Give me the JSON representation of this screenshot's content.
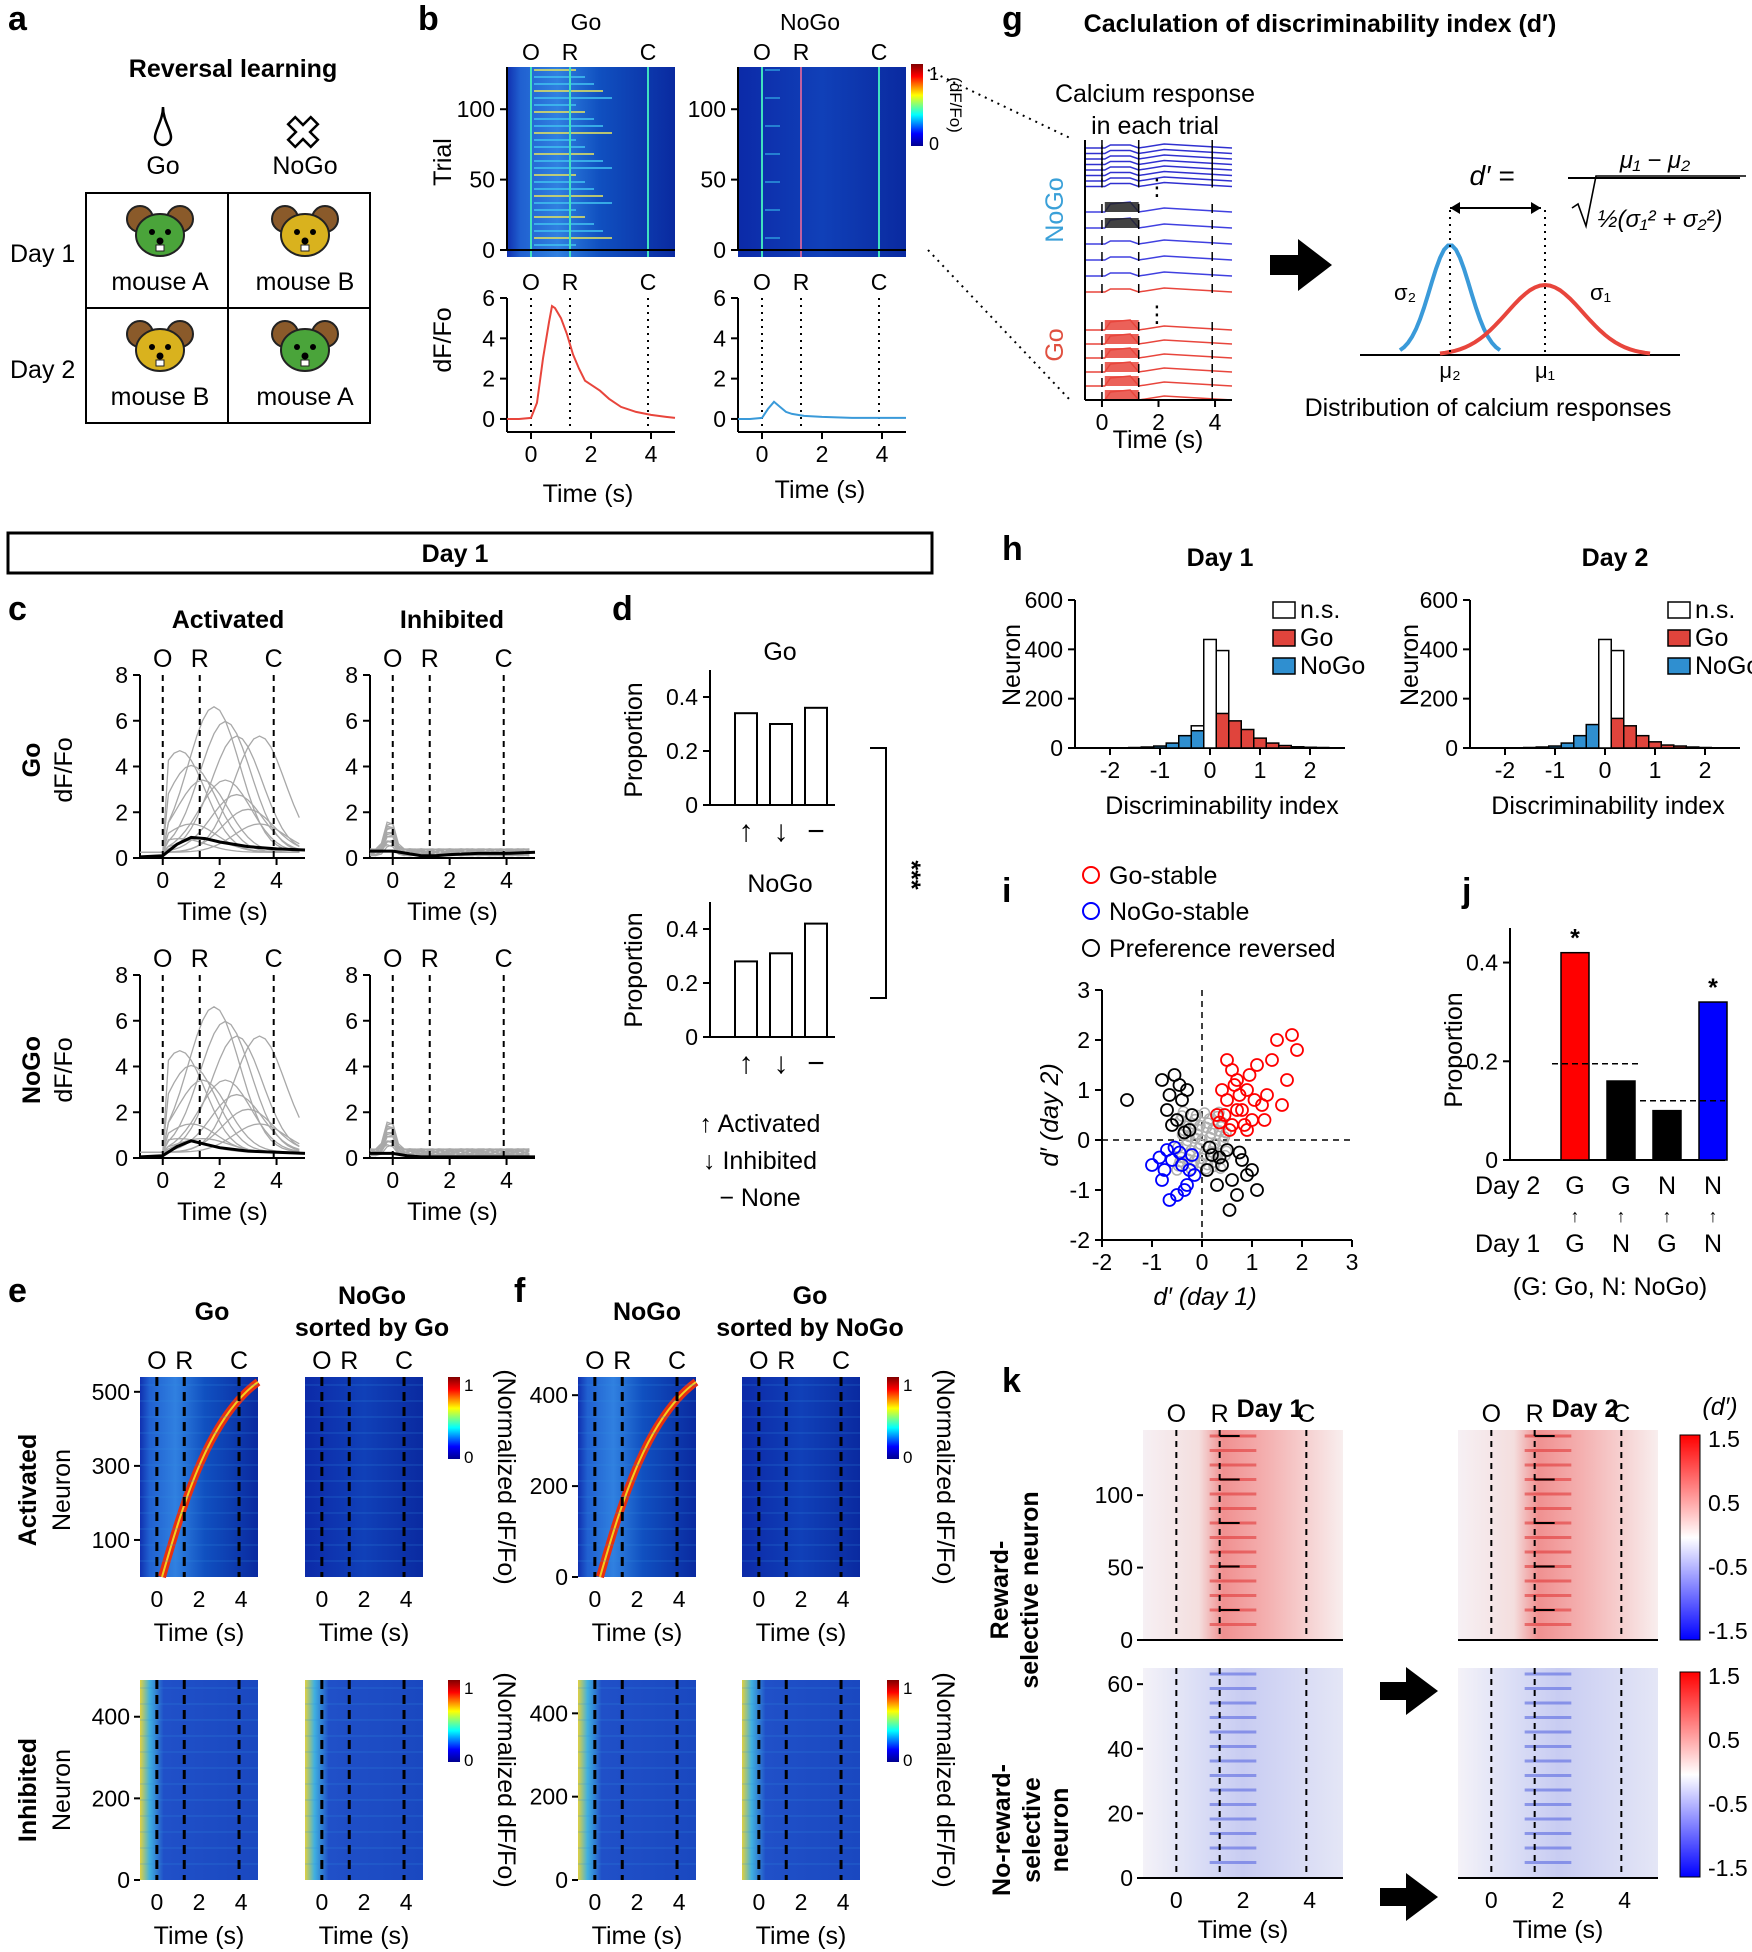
{
  "panels": {
    "a": "a",
    "b": "b",
    "c": "c",
    "d": "d",
    "e": "e",
    "f": "f",
    "g": "g",
    "h": "h",
    "i": "i",
    "j": "j",
    "k": "k"
  },
  "colors": {
    "go": "#e8453c",
    "nogo": "#3a9ad9",
    "hist_go": "#e0443c",
    "hist_nogo": "#2f8fd0",
    "scatter_go": "#ff0000",
    "scatter_nogo": "#0000ff",
    "j_go": "#ff0000",
    "j_nogo": "#0000ff",
    "mouse_green": "#4aa43a",
    "mouse_gold": "#d9b21e"
  },
  "event_labels": [
    "O",
    "R",
    "C"
  ],
  "a": {
    "title": "Reversal learning",
    "go": "Go",
    "nogo": "NoGo",
    "day1": "Day 1",
    "day2": "Day 2",
    "cells": [
      "mouse A",
      "mouse B",
      "mouse B",
      "mouse A"
    ],
    "mouse_icons": [
      "mouse-icon-green",
      "mouse-icon-gold",
      "mouse-icon-gold",
      "mouse-icon-green"
    ]
  },
  "b": {
    "go_title": "Go",
    "nogo_title": "NoGo",
    "cb_max": "1",
    "cb_min": "0",
    "cb_label": "(dF/Fo)",
    "trial_ylabel": "Trial",
    "dffo_ylabel": "dF/Fo",
    "xlabel": "Time (s)",
    "trial_ticks": [
      0,
      50,
      100
    ],
    "dffo_ticks": [
      0,
      2,
      4,
      6
    ],
    "time_ticks": [
      0,
      2,
      4
    ]
  },
  "g": {
    "title": "Caclulation of discriminability index (d′)",
    "calcium_line1": "Calcium response",
    "calcium_line2": "in each trial",
    "nogo": "NoGo",
    "go": "Go",
    "xlabel": "Time (s)",
    "time_ticks": [
      0,
      2,
      4
    ],
    "formula_lhs": "d′ =",
    "formula_num": "μ₁ − μ₂",
    "formula_den": "½(σ₁² +  σ₂²)",
    "sigma1": "σ₁",
    "sigma2": "σ₂",
    "mu1": "μ₁",
    "mu2": "μ₂",
    "dist_label": "Distribution of calcium responses"
  },
  "banner": "Day 1",
  "c": {
    "activated": "Activated",
    "inhibited": "Inhibited",
    "go_row": "Go",
    "nogo_row": "NoGo",
    "ylabel": "dF/Fo",
    "xlabel": "Time (s)",
    "y_ticks": [
      0,
      2,
      4,
      6,
      8
    ],
    "x_ticks": [
      0,
      2,
      4
    ]
  },
  "d": {
    "go_title": "Go",
    "nogo_title": "NoGo",
    "ylabel": "Proportion",
    "y_ticks": [
      0,
      0.2,
      0.4
    ],
    "x_symbols": [
      "↑",
      "↓",
      "−"
    ],
    "significance": "***",
    "legend": [
      "↑  Activated",
      "↓  Inhibited",
      "−    None"
    ]
  },
  "e": {
    "col1": "Go",
    "col2a": "NoGo",
    "col2b": "sorted by Go",
    "activated": "Activated",
    "inhibited": "Inhibited",
    "ylabel": "Neuron",
    "xlabel": "Time (s)",
    "act_ticks": [
      100,
      300,
      500
    ],
    "inh_ticks": [
      0,
      200,
      400
    ],
    "x_ticks": [
      0,
      2,
      4
    ]
  },
  "f": {
    "col1": "NoGo",
    "col2a": "Go",
    "col2b": "sorted by NoGo",
    "act_ticks": [
      0,
      200,
      400
    ],
    "inh_ticks": [
      0,
      200,
      400
    ],
    "x_ticks": [
      0,
      2,
      4
    ]
  },
  "ef_colorbar": {
    "max": "1",
    "min": "0",
    "label": "(Normalized dF/Fo)"
  },
  "h": {
    "day1": "Day 1",
    "day2": "Day 2",
    "ylabel": "Neuron",
    "xlabel": "Discriminability index",
    "legend": [
      "n.s.",
      "Go",
      "NoGo"
    ],
    "y_ticks": [
      0,
      200,
      400,
      600
    ],
    "x_ticks": [
      -2,
      -1,
      0,
      1,
      2
    ]
  },
  "i": {
    "legend": [
      "Go-stable",
      "NoGo-stable",
      "Preference reversed"
    ],
    "xlabel": "d′ (day 1)",
    "ylabel": "d′ (day 2)",
    "x_ticks": [
      -2,
      -1,
      0,
      1,
      2,
      3
    ],
    "y_ticks": [
      -2,
      -1,
      0,
      1,
      2,
      3
    ]
  },
  "j": {
    "ylabel": "Proportion",
    "day2": "Day 2",
    "day1": "Day 1",
    "note": "(G: Go, N: NoGo)",
    "y_ticks": [
      0,
      0.2,
      0.4
    ],
    "arrow": "↑"
  },
  "k": {
    "day1": "Day 1",
    "day2": "Day 2",
    "unit": "(d′)",
    "row1a": "Reward-",
    "row1b": "selective neuron",
    "row2a": "No-reward-",
    "row2b": "selective",
    "row2c": "neuron",
    "xlabel": "Time (s)",
    "row1_ticks": [
      0,
      50,
      100
    ],
    "row2_ticks": [
      0,
      20,
      40,
      60
    ],
    "x_ticks": [
      0,
      2,
      4
    ],
    "cb_ticks": [
      "1.5",
      "0.5",
      "-0.5",
      "-1.5"
    ]
  },
  "chart_data": [
    {
      "id": "b-go-mean",
      "type": "line",
      "title": "Go",
      "xlabel": "Time (s)",
      "ylabel": "dF/Fo",
      "xlim": [
        -0.8,
        4.8
      ],
      "ylim": [
        -0.3,
        6
      ],
      "x": [
        -0.8,
        -0.4,
        0,
        0.2,
        0.4,
        0.6,
        0.7,
        0.8,
        1.0,
        1.2,
        1.4,
        1.6,
        1.8,
        2.0,
        2.3,
        2.6,
        3.0,
        3.5,
        4.0,
        4.5,
        4.8
      ],
      "y": [
        0.0,
        0.0,
        0.05,
        0.8,
        3.0,
        4.8,
        5.6,
        5.5,
        5.0,
        4.2,
        3.2,
        2.5,
        1.9,
        1.7,
        1.4,
        1.0,
        0.6,
        0.35,
        0.2,
        0.1,
        0.05
      ]
    },
    {
      "id": "b-nogo-mean",
      "type": "line",
      "title": "NoGo",
      "xlabel": "Time (s)",
      "ylabel": "dF/Fo",
      "xlim": [
        -0.8,
        4.8
      ],
      "ylim": [
        -0.3,
        6
      ],
      "x": [
        -0.8,
        -0.4,
        0,
        0.2,
        0.4,
        0.6,
        0.8,
        1.0,
        1.4,
        2.0,
        3.0,
        4.0,
        4.8
      ],
      "y": [
        0.0,
        0.0,
        0.05,
        0.5,
        0.85,
        0.6,
        0.35,
        0.25,
        0.15,
        0.1,
        0.05,
        0.05,
        0.05
      ]
    },
    {
      "id": "c-mean-traces",
      "type": "line",
      "xlabel": "Time (s)",
      "ylabel": "dF/Fo",
      "xlim": [
        -0.8,
        5
      ],
      "ylim": [
        0,
        8
      ],
      "x": [
        -0.8,
        0,
        0.5,
        1.0,
        1.5,
        2.0,
        3.0,
        4.0,
        5.0
      ],
      "series": [
        {
          "values": [
            0.05,
            0.1,
            0.6,
            0.9,
            0.85,
            0.7,
            0.5,
            0.4,
            0.35
          ]
        },
        {
          "values": [
            0.3,
            0.3,
            0.2,
            0.1,
            0.1,
            0.15,
            0.2,
            0.2,
            0.25
          ]
        },
        {
          "values": [
            0.05,
            0.1,
            0.5,
            0.75,
            0.6,
            0.45,
            0.3,
            0.25,
            0.2
          ]
        },
        {
          "values": [
            0.2,
            0.2,
            0.1,
            0.05,
            0.05,
            0.05,
            0.05,
            0.05,
            0.05
          ]
        }
      ]
    },
    {
      "id": "d-go",
      "type": "bar",
      "title": "Go",
      "ylabel": "Proportion",
      "categories": [
        "↑",
        "↓",
        "−"
      ],
      "values": [
        0.34,
        0.3,
        0.36
      ],
      "ylim": [
        0,
        0.5
      ]
    },
    {
      "id": "d-nogo",
      "type": "bar",
      "title": "NoGo",
      "ylabel": "Proportion",
      "categories": [
        "↑",
        "↓",
        "−"
      ],
      "values": [
        0.28,
        0.31,
        0.42
      ],
      "ylim": [
        0,
        0.5
      ]
    },
    {
      "id": "h-day1",
      "type": "bar",
      "title": "Day 1",
      "xlabel": "Discriminability index",
      "ylabel": "Neuron",
      "x": [
        -1.5,
        -1.25,
        -1.0,
        -0.75,
        -0.5,
        -0.25,
        0,
        0.25,
        0.5,
        0.75,
        1.0,
        1.25,
        1.5,
        1.75,
        2.0,
        2.25
      ],
      "series": [
        {
          "name": "n.s.",
          "values": [
            0,
            0,
            3,
            5,
            15,
            90,
            440,
            395,
            0,
            0,
            0,
            0,
            0,
            0,
            0,
            0
          ]
        },
        {
          "name": "Go",
          "values": [
            0,
            0,
            0,
            0,
            0,
            0,
            0,
            140,
            110,
            75,
            40,
            20,
            10,
            5,
            3,
            2
          ]
        },
        {
          "name": "NoGo",
          "values": [
            2,
            4,
            8,
            20,
            50,
            70,
            0,
            0,
            0,
            0,
            0,
            0,
            0,
            0,
            0,
            0
          ]
        }
      ],
      "ylim": [
        0,
        600
      ],
      "xlim": [
        -2.7,
        2.7
      ]
    },
    {
      "id": "h-day2",
      "type": "bar",
      "title": "Day 2",
      "xlabel": "Discriminability index",
      "ylabel": "Neuron",
      "x": [
        -1.5,
        -1.25,
        -1.0,
        -0.75,
        -0.5,
        -0.25,
        0,
        0.25,
        0.5,
        0.75,
        1.0,
        1.25,
        1.5,
        1.75,
        2.0,
        2.25
      ],
      "series": [
        {
          "name": "n.s.",
          "values": [
            0,
            0,
            3,
            5,
            15,
            90,
            440,
            395,
            0,
            0,
            0,
            0,
            0,
            0,
            0,
            0
          ]
        },
        {
          "name": "Go",
          "values": [
            0,
            0,
            0,
            0,
            0,
            0,
            0,
            120,
            90,
            50,
            25,
            12,
            8,
            4,
            2,
            1
          ]
        },
        {
          "name": "NoGo",
          "values": [
            2,
            4,
            8,
            20,
            50,
            95,
            0,
            0,
            0,
            0,
            0,
            0,
            0,
            0,
            0,
            0
          ]
        }
      ],
      "ylim": [
        0,
        600
      ],
      "xlim": [
        -2.7,
        2.7
      ]
    },
    {
      "id": "i-scatter",
      "type": "scatter",
      "xlabel": "d′ (day 1)",
      "ylabel": "d′ (day 2)",
      "xlim": [
        -2,
        3
      ],
      "ylim": [
        -2,
        3
      ],
      "series": [
        {
          "name": "Go-stable",
          "x": [
            0.3,
            0.5,
            0.7,
            0.9,
            1.1,
            1.3,
            1.5,
            1.7,
            1.9,
            0.6,
            0.8,
            1.0,
            1.2,
            0.4,
            0.55,
            0.75,
            0.95,
            1.4,
            1.6,
            1.8,
            0.45,
            0.65,
            0.85,
            1.05,
            1.25,
            0.5,
            0.7,
            0.9,
            0.35,
            0.6
          ],
          "y": [
            0.5,
            0.8,
            1.2,
            1.0,
            1.5,
            0.9,
            2.0,
            1.2,
            1.8,
            0.3,
            0.6,
            0.4,
            0.7,
            1.0,
            0.2,
            0.9,
            1.3,
            1.6,
            0.7,
            2.1,
            0.5,
            1.1,
            0.3,
            0.8,
            0.4,
            1.6,
            0.6,
            0.2,
            0.35,
            1.4
          ]
        },
        {
          "name": "NoGo-stable",
          "x": [
            -0.2,
            -0.4,
            -0.6,
            -0.8,
            -1.0,
            -0.3,
            -0.5,
            -0.7,
            -0.25,
            -0.45,
            -0.65,
            -0.85,
            -0.15,
            -0.35,
            -0.55,
            -0.75
          ],
          "y": [
            -0.3,
            -0.5,
            -0.4,
            -0.8,
            -0.5,
            -0.9,
            -1.1,
            -0.2,
            -0.6,
            -0.25,
            -1.2,
            -0.35,
            -0.7,
            -1.0,
            -0.15,
            -0.6
          ]
        },
        {
          "name": "Preference reversed",
          "x": [
            -0.2,
            -0.4,
            -0.6,
            -0.8,
            -0.3,
            -0.5,
            -0.7,
            -1.5,
            -0.25,
            -0.45,
            -0.65,
            0.2,
            0.4,
            0.6,
            0.8,
            1.0,
            0.3,
            0.5,
            0.7,
            0.9,
            0.1,
            0.35,
            0.55,
            0.75,
            0.15,
            -0.35,
            -0.55,
            1.1
          ],
          "y": [
            0.5,
            0.8,
            0.3,
            1.2,
            1.0,
            0.4,
            0.6,
            0.8,
            0.2,
            1.1,
            0.9,
            -0.3,
            -0.5,
            -0.8,
            -0.4,
            -0.6,
            -0.9,
            -0.2,
            -1.1,
            -0.7,
            -0.6,
            -0.35,
            -1.4,
            -0.25,
            -0.15,
            0.15,
            1.3,
            -1.0
          ]
        }
      ]
    },
    {
      "id": "j-bars",
      "type": "bar",
      "ylabel": "Proportion",
      "categories": [
        "G↑G",
        "G↑N",
        "N↑G",
        "N↑N"
      ],
      "values": [
        0.42,
        0.16,
        0.1,
        0.32
      ],
      "ylim": [
        0,
        0.47
      ],
      "chance_levels": [
        0.195,
        0.12
      ],
      "significant": [
        "*",
        "",
        "",
        "*"
      ]
    }
  ]
}
